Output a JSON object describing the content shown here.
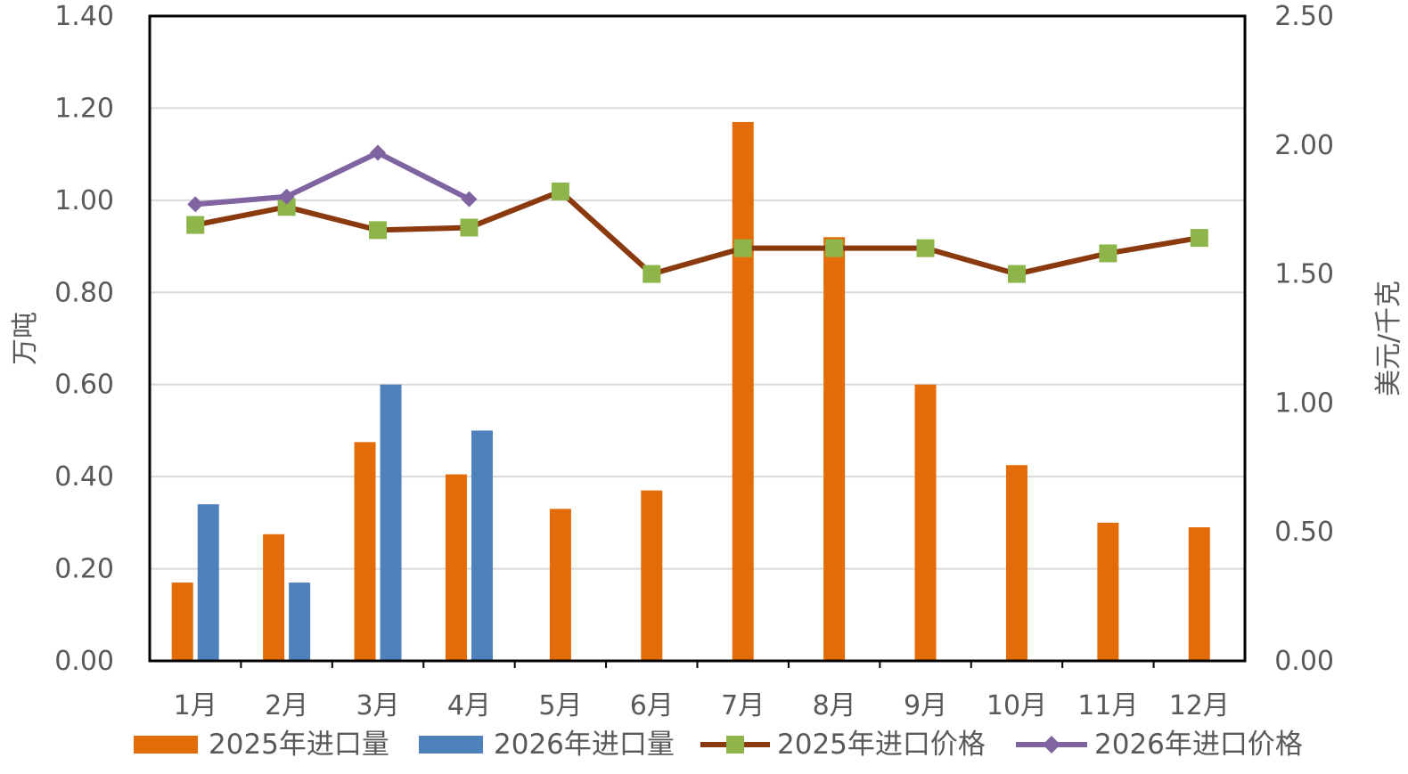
{
  "chart_data": {
    "type": "bar",
    "categories": [
      "1月",
      "2月",
      "3月",
      "4月",
      "5月",
      "6月",
      "7月",
      "8月",
      "9月",
      "10月",
      "11月",
      "12月"
    ],
    "left_axis": {
      "label": "万吨",
      "ylim": [
        0,
        1.4
      ],
      "ticks": [
        "0.00",
        "0.20",
        "0.40",
        "0.60",
        "0.80",
        "1.00",
        "1.20",
        "1.40"
      ]
    },
    "right_axis": {
      "label": "美元/千克",
      "ylim": [
        0,
        2.5
      ],
      "ticks": [
        "0.00",
        "0.50",
        "1.00",
        "1.50",
        "2.00",
        "2.50"
      ]
    },
    "grid": true,
    "legend_position": "bottom",
    "series": [
      {
        "name": "2025年进口量",
        "kind": "bar",
        "axis": "left",
        "color": "#E36C09",
        "values": [
          0.17,
          0.275,
          0.475,
          0.405,
          0.33,
          0.37,
          1.17,
          0.92,
          0.6,
          0.425,
          0.3,
          0.29
        ]
      },
      {
        "name": "2026年进口量",
        "kind": "bar",
        "axis": "left",
        "color": "#4F81BD",
        "values": [
          0.34,
          0.17,
          0.6,
          0.5,
          null,
          null,
          null,
          null,
          null,
          null,
          null,
          null
        ]
      },
      {
        "name": "2025年进口价格",
        "kind": "line",
        "axis": "right",
        "color": "#8B3A0F",
        "marker": "square",
        "marker_color": "#8DB54A",
        "values": [
          1.69,
          1.76,
          1.67,
          1.68,
          1.82,
          1.5,
          1.6,
          1.6,
          1.6,
          1.5,
          1.58,
          1.64
        ]
      },
      {
        "name": "2026年进口价格",
        "kind": "line",
        "axis": "right",
        "color": "#8064A2",
        "marker": "diamond",
        "marker_color": "#8064A2",
        "values": [
          1.77,
          1.8,
          1.97,
          1.79,
          null,
          null,
          null,
          null,
          null,
          null,
          null,
          null
        ]
      }
    ]
  }
}
